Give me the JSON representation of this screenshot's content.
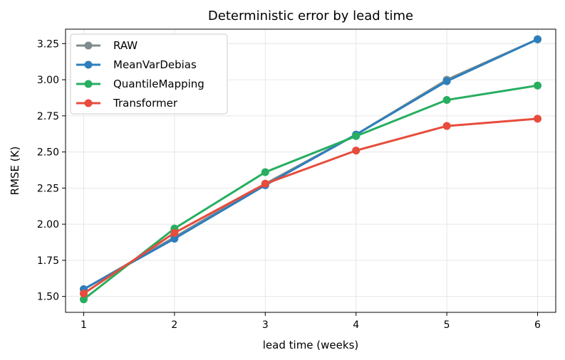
{
  "chart_data": {
    "type": "line",
    "title": "Deterministic error by lead time",
    "xlabel": "lead time (weeks)",
    "ylabel": "RMSE (K)",
    "x": [
      1,
      2,
      3,
      4,
      5,
      6
    ],
    "xticks": [
      "1",
      "2",
      "3",
      "4",
      "5",
      "6"
    ],
    "yticks": [
      "1.50",
      "1.75",
      "2.00",
      "2.25",
      "2.50",
      "2.75",
      "3.00",
      "3.25"
    ],
    "ylim": [
      1.39,
      3.35
    ],
    "xlim": [
      0.8,
      6.2
    ],
    "grid": true,
    "legend_position": "upper-left",
    "series": [
      {
        "name": "RAW",
        "color": "#7f8c8d",
        "values": [
          1.55,
          1.91,
          2.28,
          2.62,
          3.0,
          3.28
        ]
      },
      {
        "name": "MeanVarDebias",
        "color": "#2e7ebc",
        "values": [
          1.55,
          1.9,
          2.27,
          2.62,
          2.99,
          3.28
        ]
      },
      {
        "name": "QuantileMapping",
        "color": "#27ae60",
        "values": [
          1.48,
          1.97,
          2.36,
          2.61,
          2.86,
          2.96
        ]
      },
      {
        "name": "Transformer",
        "color": "#e74c3c",
        "values": [
          1.52,
          1.94,
          2.28,
          2.51,
          2.68,
          2.73
        ]
      }
    ]
  }
}
